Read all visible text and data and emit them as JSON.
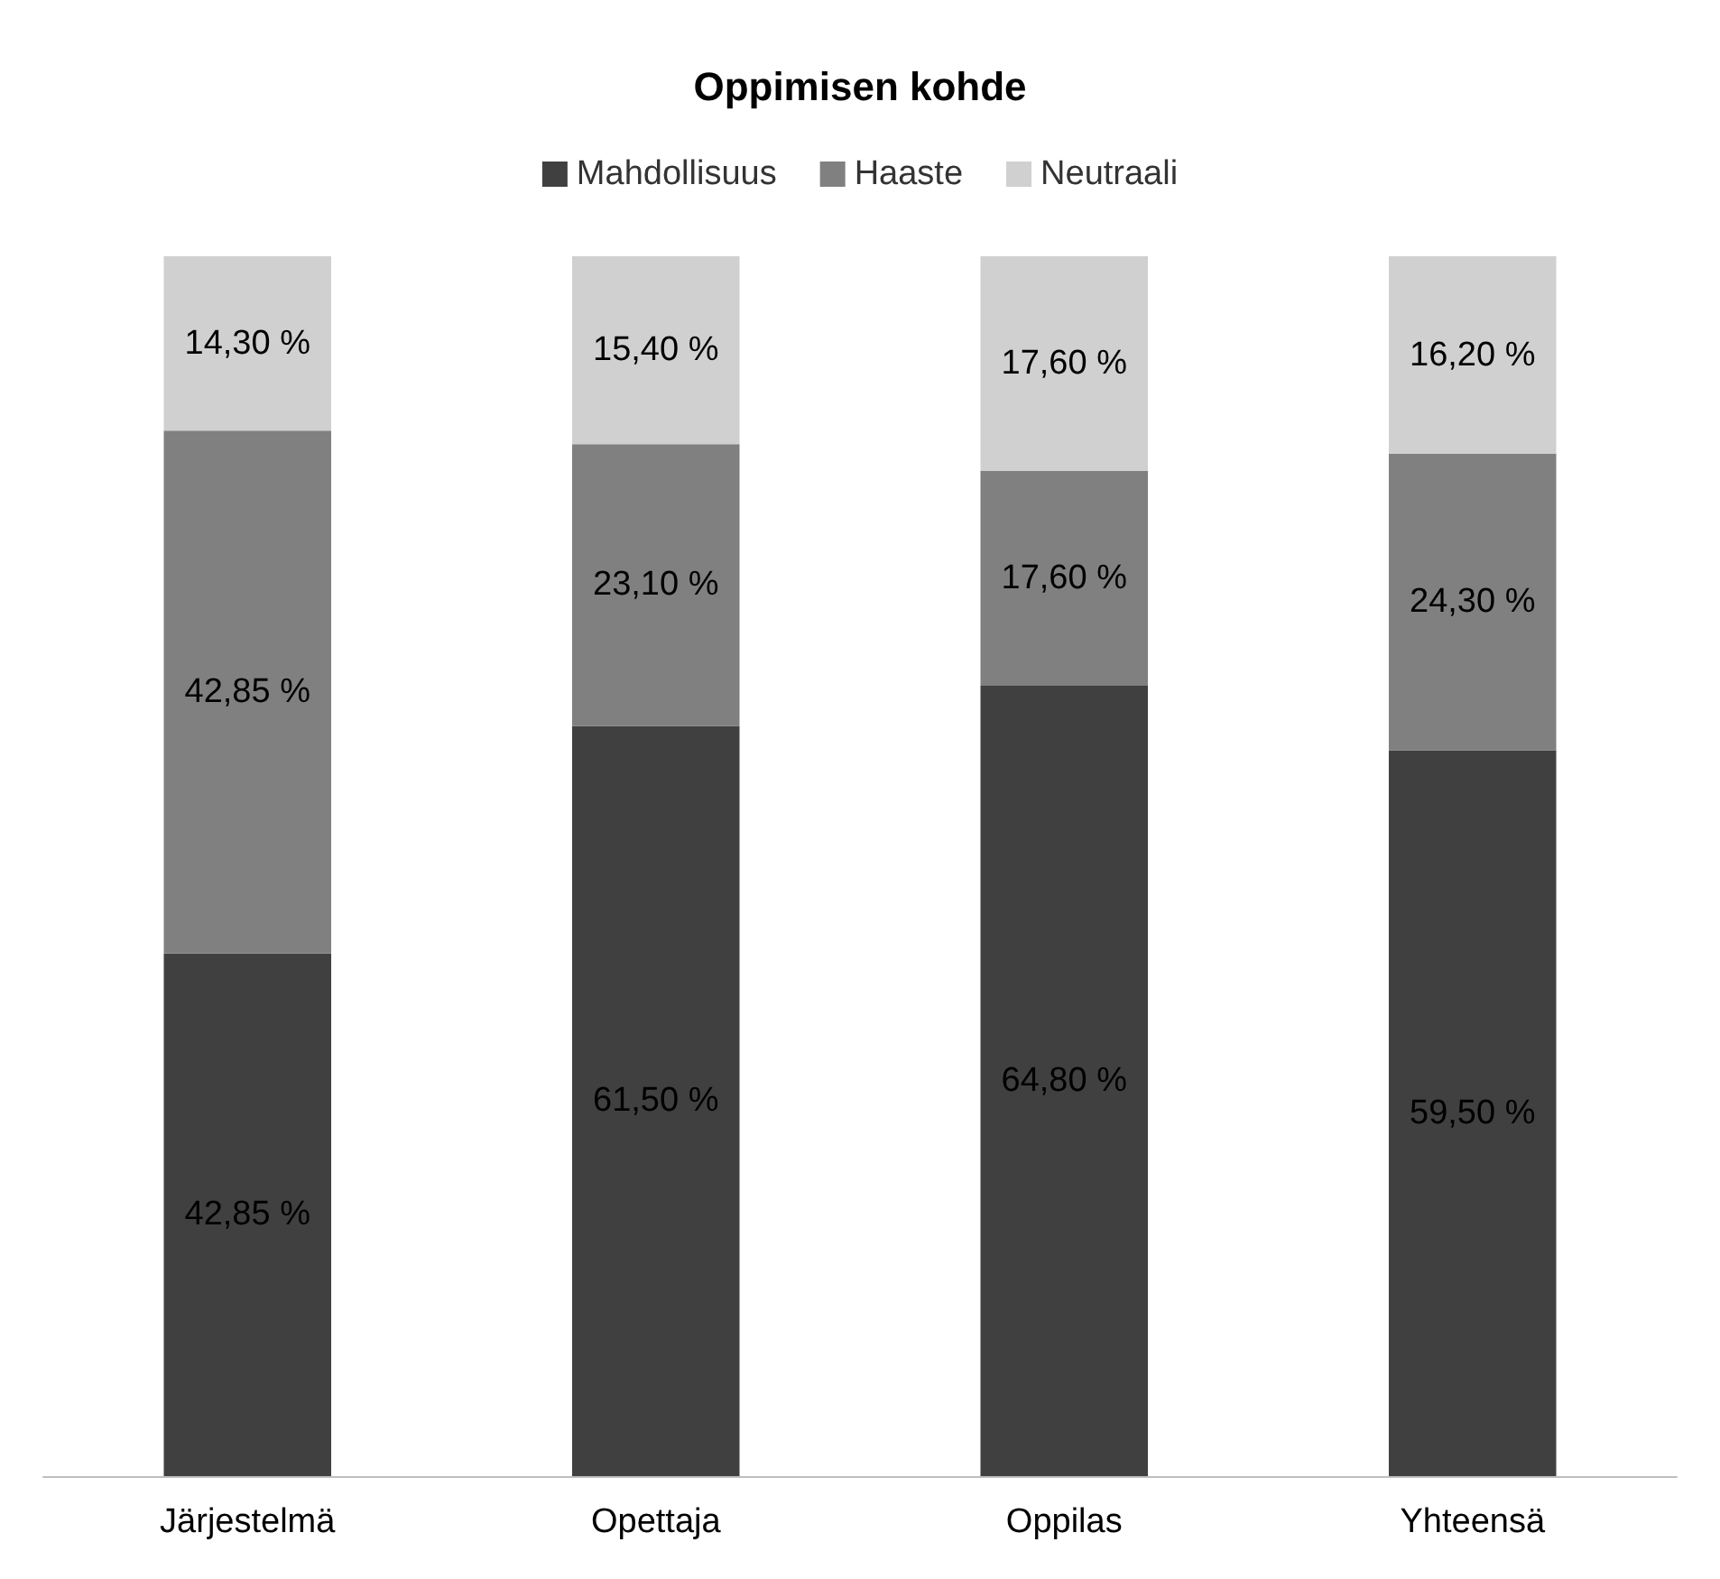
{
  "chart_data": {
    "type": "bar",
    "title": "Oppimisen kohde",
    "stacked": true,
    "categories": [
      "Järjestelmä",
      "Opettaja",
      "Oppilas",
      "Yhteensä"
    ],
    "series": [
      {
        "name": "Mahdollisuus",
        "color": "#404040",
        "values": [
          42.85,
          61.5,
          64.8,
          59.5
        ],
        "value_labels": [
          "42,85 %",
          "61,50 %",
          "64,80 %",
          "59,50 %"
        ]
      },
      {
        "name": "Haaste",
        "color": "#808080",
        "values": [
          42.85,
          23.1,
          17.6,
          24.3
        ],
        "value_labels": [
          "42,85 %",
          "23,10 %",
          "17,60 %",
          "24,30 %"
        ]
      },
      {
        "name": "Neutraali",
        "color": "#d0d0d0",
        "values": [
          14.3,
          15.4,
          17.6,
          16.2
        ],
        "value_labels": [
          "14,30 %",
          "15,40 %",
          "17,60 %",
          "16,20 %"
        ]
      }
    ],
    "ylim": [
      0,
      100
    ],
    "tick_labels": "x",
    "legend": "top"
  }
}
